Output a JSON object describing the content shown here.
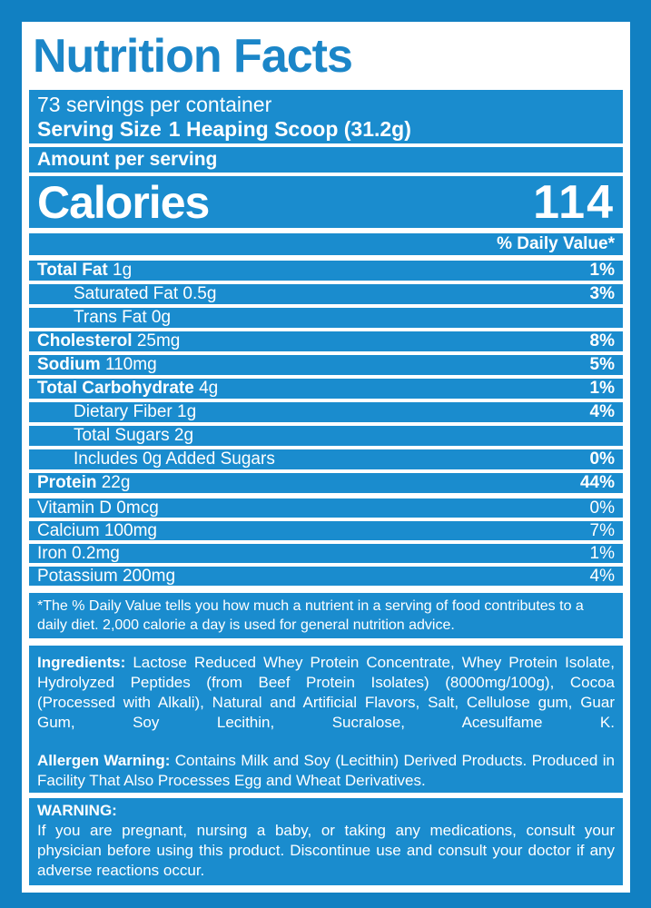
{
  "colors": {
    "background_blue": "#1180C2",
    "row_blue": "#1A8CCE",
    "panel_white": "#FFFFFF",
    "title_blue": "#1B86C8"
  },
  "label": {
    "title": "Nutrition Facts",
    "servings_per_container": "73 servings per container",
    "serving_size_label": "Serving Size",
    "serving_size_value": "1 Heaping Scoop (31.2g)",
    "amount_per_serving": "Amount per serving",
    "calories_label": "Calories",
    "calories_value": "114",
    "daily_value_header": "% Daily Value*",
    "nutrients": [
      {
        "name": "Total Fat",
        "amount": "1g",
        "dv": "1%"
      },
      {
        "name": "Saturated Fat",
        "amount": "0.5g",
        "dv": "3%"
      },
      {
        "name": "Trans Fat",
        "amount": "0g",
        "dv": ""
      },
      {
        "name": "Cholesterol",
        "amount": "25mg",
        "dv": "8%"
      },
      {
        "name": "Sodium",
        "amount": "110mg",
        "dv": "5%"
      },
      {
        "name": "Total Carbohydrate",
        "amount": "4g",
        "dv": "1%"
      },
      {
        "name": "Dietary Fiber",
        "amount": "1g",
        "dv": "4%"
      },
      {
        "name": "Total Sugars",
        "amount": "2g",
        "dv": ""
      },
      {
        "name": "Includes 0g Added Sugars",
        "amount": "",
        "dv": "0%"
      },
      {
        "name": "Protein",
        "amount": "22g",
        "dv": "44%"
      }
    ],
    "vitamins": [
      {
        "name": "Vitamin D",
        "amount": "0mcg",
        "dv": "0%"
      },
      {
        "name": "Calcium",
        "amount": "100mg",
        "dv": "7%"
      },
      {
        "name": "Iron",
        "amount": "0.2mg",
        "dv": "1%"
      },
      {
        "name": "Potassium",
        "amount": "200mg",
        "dv": "4%"
      }
    ],
    "footnote": "*The % Daily Value tells you how much a nutrient in a serving of food contributes to a daily diet. 2,000 calorie a day is used for general nutrition advice.",
    "ingredients_label": "Ingredients:",
    "ingredients_text": " Lactose Reduced Whey Protein Concentrate, Whey Protein Isolate, Hydrolyzed Peptides (from Beef Protein Isolates) (8000mg/100g), Cocoa (Processed with Alkali), Natural and Artificial Flavors, Salt, Cellulose gum, Guar Gum, Soy Lecithin, Sucralose, Acesulfame K.",
    "allergen_label": "Allergen Warning:",
    "allergen_text": " Contains Milk and Soy (Lecithin) Derived Products. Produced in Facility That Also Processes Egg and Wheat Derivatives.",
    "warning_label": "WARNING:",
    "warning_text": "If you are pregnant, nursing a baby, or taking any medications, consult your physician before using this product. Discontinue use and consult your doctor if any adverse reactions occur."
  }
}
